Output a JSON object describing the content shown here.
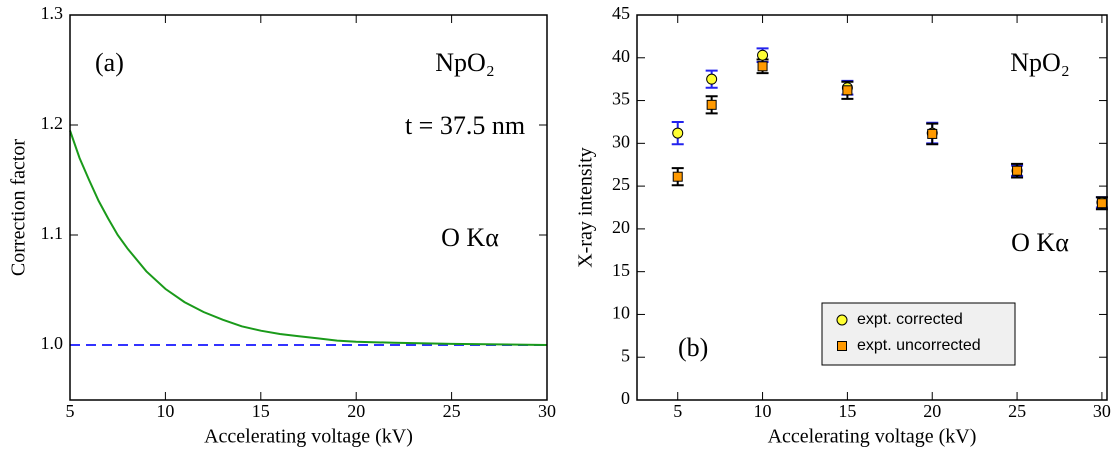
{
  "chart_data": [
    {
      "type": "line",
      "xlabel": "Accelerating voltage (kV)",
      "ylabel": "Correction factor",
      "annotations": [
        "(a)",
        "NpO₂",
        "t = 37.5 nm",
        "O Kα"
      ],
      "xlim": [
        5,
        30
      ],
      "ylim": [
        0.95,
        1.3
      ],
      "xticks": [
        5,
        10,
        15,
        20,
        25,
        30
      ],
      "yticks": [
        {
          "value": 1,
          "label": "1.0"
        },
        1.1,
        1.2,
        1.3
      ],
      "series": [
        {
          "color": "#1a9a1a",
          "x": [
            5,
            5.5,
            6,
            6.5,
            7,
            7.5,
            8,
            9,
            10,
            11,
            12,
            13,
            14,
            15,
            16,
            17,
            18,
            19,
            20,
            22,
            25,
            30
          ],
          "values": [
            1.195,
            1.17,
            1.15,
            1.131,
            1.115,
            1.1,
            1.088,
            1.067,
            1.051,
            1.039,
            1.03,
            1.023,
            1.017,
            1.013,
            1.01,
            1.008,
            1.006,
            1.004,
            1.003,
            1.002,
            1.001,
            1.0
          ]
        }
      ],
      "hline": {
        "value": 1,
        "color": "#3333ff"
      }
    },
    {
      "type": "scatter",
      "xlabel": "Accelerating voltage (kV)",
      "ylabel": "X-ray intensity",
      "annotations": [
        "NpO₂",
        "O Kα",
        "(b)"
      ],
      "xlim": [
        2.6,
        30.3
      ],
      "ylim": [
        0,
        45
      ],
      "xticks": [
        5,
        10,
        15,
        20,
        25,
        30
      ],
      "yticks": [
        0,
        5,
        10,
        15,
        20,
        25,
        30,
        35,
        40,
        45
      ],
      "series": [
        {
          "name": "expt. corrected",
          "marker": "circle",
          "color": "#ffff33",
          "error_color": "#2222ee",
          "x": [
            5,
            7,
            10,
            15,
            20,
            25,
            30
          ],
          "values": [
            31.2,
            37.5,
            40.3,
            36.5,
            31.2,
            26.8,
            23.1
          ],
          "errors": [
            1.3,
            1.0,
            0.8,
            0.8,
            1.2,
            0.6,
            0.6
          ]
        },
        {
          "name": "expt. uncorrected",
          "marker": "square",
          "color": "#ff9900",
          "error_color": "#000000",
          "x": [
            5,
            7,
            10,
            15,
            20,
            25,
            30
          ],
          "values": [
            26.1,
            34.5,
            39.0,
            36.2,
            31.1,
            26.8,
            23.0
          ],
          "errors": [
            1.0,
            1.0,
            0.8,
            1.0,
            1.2,
            0.8,
            0.7
          ]
        }
      ]
    }
  ]
}
